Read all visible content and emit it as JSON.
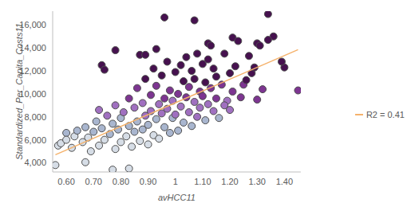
{
  "chart_data": {
    "type": "scatter",
    "x_label": "avHCC11",
    "y_label": "Standardized_Per_Capita_Costs11",
    "series": [
      {
        "type": "scatter",
        "marker": "circle",
        "x": [
          0.56,
          0.67,
          0.77,
          0.83,
          0.96,
          1.07,
          1.34,
          1.36,
          1.34,
          1.45,
          1.4,
          1.39,
          1.3,
          1.31,
          1.21,
          1.23,
          0.78,
          0.73,
          0.74,
          0.87,
          0.89,
          0.93,
          1.12,
          1.13,
          1.28,
          1.3,
          1.25,
          1.19,
          0.57,
          0.58,
          0.6,
          0.6,
          0.62,
          0.63,
          0.64,
          0.66,
          0.67,
          0.68,
          0.69,
          0.7,
          0.71,
          0.72,
          0.72,
          0.73,
          0.74,
          0.75,
          0.76,
          0.77,
          0.78,
          0.78,
          0.79,
          0.8,
          0.8,
          0.81,
          0.82,
          0.83,
          0.83,
          0.84,
          0.85,
          0.85,
          0.86,
          0.86,
          0.87,
          0.88,
          0.88,
          0.89,
          0.89,
          0.9,
          0.9,
          0.91,
          0.91,
          0.92,
          0.92,
          0.93,
          0.93,
          0.94,
          0.94,
          0.95,
          0.95,
          0.96,
          0.96,
          0.97,
          0.97,
          0.98,
          0.98,
          0.99,
          0.99,
          1.0,
          1.0,
          1.01,
          1.01,
          1.02,
          1.02,
          1.03,
          1.03,
          1.04,
          1.04,
          1.05,
          1.05,
          1.06,
          1.06,
          1.07,
          1.07,
          1.08,
          1.08,
          1.09,
          1.09,
          1.1,
          1.1,
          1.11,
          1.11,
          1.12,
          1.12,
          1.13,
          1.14,
          1.14,
          1.15,
          1.15,
          1.16,
          1.17,
          1.18,
          1.18,
          1.2,
          1.2,
          1.21,
          1.22,
          1.24,
          1.26,
          1.27,
          1.32,
          1.29
        ],
        "values": [
          3800,
          4050,
          3400,
          3500,
          16650,
          16400,
          16950,
          15000,
          14700,
          10300,
          12300,
          12800,
          14400,
          14200,
          14900,
          14600,
          13800,
          12500,
          12100,
          13400,
          13400,
          13900,
          14400,
          14200,
          11800,
          9500,
          10800,
          9400,
          5500,
          5700,
          6600,
          6000,
          5300,
          6300,
          6800,
          5800,
          7100,
          6200,
          5000,
          6700,
          7600,
          5500,
          8600,
          7000,
          6000,
          8100,
          6500,
          7400,
          5200,
          9000,
          6900,
          7900,
          5800,
          8400,
          6300,
          9600,
          7200,
          5400,
          8800,
          6700,
          10500,
          7600,
          5900,
          9200,
          6900,
          11300,
          8100,
          7300,
          5600,
          9900,
          8500,
          6400,
          12200,
          7800,
          10700,
          9100,
          6100,
          8300,
          11600,
          7100,
          9600,
          12800,
          8700,
          6600,
          10300,
          7900,
          9400,
          11900,
          8200,
          6800,
          10000,
          12500,
          8900,
          7500,
          11100,
          9700,
          13200,
          8400,
          10600,
          7200,
          12000,
          9300,
          11300,
          8000,
          13500,
          10200,
          8800,
          12600,
          9800,
          7700,
          11000,
          9100,
          13000,
          10500,
          8500,
          12200,
          9600,
          11500,
          7900,
          10800,
          13500,
          9000,
          11800,
          8600,
          10200,
          12400,
          9700,
          11200,
          13300,
          10400,
          12300
        ],
        "colors": [
          "#d6dde6",
          "#d6dde6",
          "#d6dde6",
          "#d6dde6",
          "#46114f",
          "#46114f",
          "#46114f",
          "#46114f",
          "#46114f",
          "#7d3591",
          "#46114f",
          "#46114f",
          "#46114f",
          "#46114f",
          "#46114f",
          "#46114f",
          "#46114f",
          "#46114f",
          "#46114f",
          "#46114f",
          "#46114f",
          "#46114f",
          "#46114f",
          "#46114f",
          "#46114f",
          "#7d3591",
          "#7d3591",
          "#a070c0",
          "#d6dde6",
          "#d6dde6",
          "#a9b6cf",
          "#d6dde6",
          "#d6dde6",
          "#d6dde6",
          "#a9b6cf",
          "#d6dde6",
          "#a9b6cf",
          "#d6dde6",
          "#d6dde6",
          "#a9b6cf",
          "#a9b6cf",
          "#d6dde6",
          "#a070c0",
          "#a9b6cf",
          "#d6dde6",
          "#a070c0",
          "#a9b6cf",
          "#a9b6cf",
          "#d6dde6",
          "#a070c0",
          "#a9b6cf",
          "#a9b6cf",
          "#d6dde6",
          "#a070c0",
          "#d6dde6",
          "#7d3591",
          "#a9b6cf",
          "#d6dde6",
          "#a070c0",
          "#a9b6cf",
          "#7d3591",
          "#a9b6cf",
          "#d6dde6",
          "#a070c0",
          "#a9b6cf",
          "#46114f",
          "#a070c0",
          "#a9b6cf",
          "#d6dde6",
          "#7d3591",
          "#a070c0",
          "#d6dde6",
          "#46114f",
          "#a9b6cf",
          "#7d3591",
          "#a070c0",
          "#d6dde6",
          "#a070c0",
          "#46114f",
          "#a9b6cf",
          "#7d3591",
          "#46114f",
          "#a070c0",
          "#a9b6cf",
          "#7d3591",
          "#a9b6cf",
          "#a070c0",
          "#46114f",
          "#a070c0",
          "#a9b6cf",
          "#7d3591",
          "#46114f",
          "#a070c0",
          "#a9b6cf",
          "#46114f",
          "#7d3591",
          "#46114f",
          "#a070c0",
          "#7d3591",
          "#a9b6cf",
          "#46114f",
          "#a070c0",
          "#46114f",
          "#a070c0",
          "#46114f",
          "#7d3591",
          "#a070c0",
          "#46114f",
          "#7d3591",
          "#a9b6cf",
          "#46114f",
          "#a070c0",
          "#46114f",
          "#7d3591",
          "#a070c0",
          "#46114f",
          "#7d3591",
          "#46114f",
          "#a9b6cf",
          "#7d3591",
          "#46114f",
          "#a070c0",
          "#46114f",
          "#a070c0",
          "#7d3591",
          "#46114f",
          "#7d3591",
          "#46114f",
          "#46114f",
          "#7d3591",
          "#46114f"
        ]
      },
      {
        "type": "line",
        "name": "R2 = 0.415",
        "color": "#f5b26b",
        "x": [
          0.56,
          1.45
        ],
        "values": [
          4700,
          13850
        ]
      }
    ],
    "xlim": [
      0.55,
      1.46
    ],
    "ylim": [
      3200,
      17200
    ],
    "xticks": [
      {
        "value": 0.6,
        "label": "0.60"
      },
      {
        "value": 0.7,
        "label": "0.70"
      },
      {
        "value": 0.8,
        "label": "0.80"
      },
      {
        "value": 0.9,
        "label": "0.90"
      },
      1,
      {
        "value": 1.1,
        "label": "1.10"
      },
      {
        "value": 1.2,
        "label": "1.20"
      },
      {
        "value": 1.3,
        "label": "1.30"
      },
      {
        "value": 1.4,
        "label": "1.40"
      }
    ],
    "yticks": [
      {
        "value": 4000,
        "label": "4,000"
      },
      {
        "value": 6000,
        "label": "6,000"
      },
      {
        "value": 8000,
        "label": "8,000"
      },
      {
        "value": 10000,
        "label": "10,000"
      },
      {
        "value": 12000,
        "label": "12,000"
      },
      {
        "value": 14000,
        "label": "14,000"
      },
      {
        "value": 16000,
        "label": "16,000"
      }
    ],
    "legend": "right",
    "grid": false
  }
}
